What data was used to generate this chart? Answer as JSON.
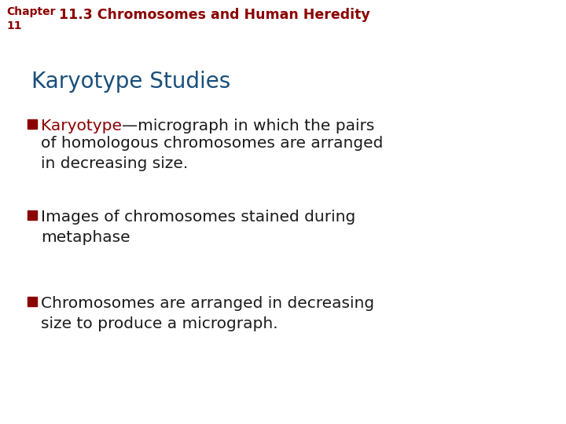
{
  "background_color": "#ffffff",
  "chapter_label": "Chapter",
  "chapter_num": "11",
  "dark_red": "#8B0000",
  "dark_blue": "#1a4f7a",
  "dark_text": "#1a1a1a",
  "section_title": "11.3 Chromosomes and Human Heredity",
  "slide_title": "Karyotype Studies",
  "bullet_items": [
    {
      "keyword": "Karyotype",
      "rest_line1": "—micrograph in which the pairs",
      "rest_lines": "of homologous chromosomes are arranged\nin decreasing size."
    },
    {
      "keyword": "",
      "rest_line1": "Images of chromosomes stained during",
      "rest_lines": "metaphase"
    },
    {
      "keyword": "",
      "rest_line1": "Chromosomes are arranged in decreasing",
      "rest_lines": "size to produce a micrograph."
    }
  ]
}
